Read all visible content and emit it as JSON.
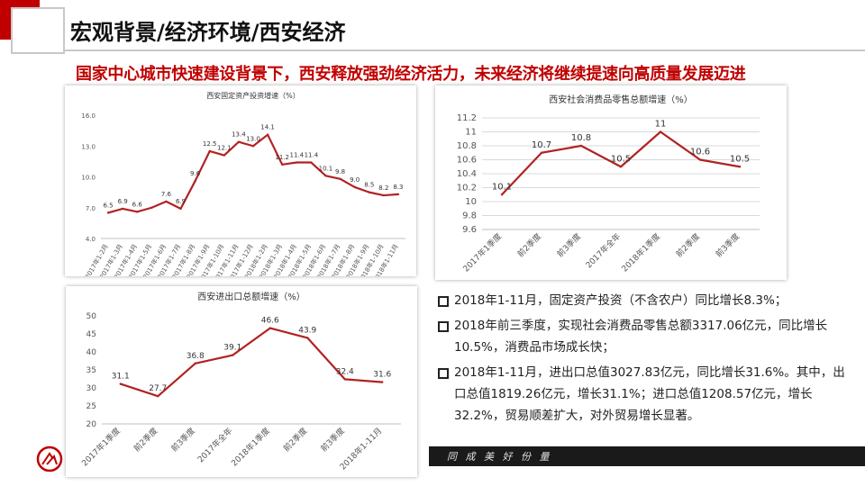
{
  "header": {
    "title": "宏观背景/经济环境/西安经济",
    "subtitle": "国家中心城市快速建设背景下，西安释放强劲经济活力，未来经济将继续提速向高质量发展迈进"
  },
  "colors": {
    "accent": "#c00000",
    "line": "#b22222",
    "grid": "#d9d9d9"
  },
  "chart_data": [
    {
      "type": "line",
      "title": "西安固定资产投资增速（%）",
      "categories": [
        "2017年1-2月",
        "2017年1-3月",
        "2017年1-4月",
        "2017年1-5月",
        "2017年1-6月",
        "2017年1-7月",
        "2017年1-8月",
        "2017年1-9月",
        "2017年1-10月",
        "2017年1-11月",
        "2017年1-12月",
        "2018年1-2月",
        "2018年1-3月",
        "2018年1-4月",
        "2018年1-5月",
        "2018年1-6月",
        "2018年1-7月",
        "2018年1-8月",
        "2018年1-9月",
        "2018年1-10月",
        "2018年1-11月"
      ],
      "values": [
        6.5,
        6.9,
        6.6,
        7.0,
        7.6,
        6.9,
        9.6,
        12.5,
        12.1,
        13.4,
        13.0,
        14.1,
        11.2,
        11.4,
        11.4,
        10.1,
        9.8,
        9.0,
        8.5,
        8.2,
        8.3
      ],
      "value_labels": [
        "6.5",
        "6.9",
        "6.6",
        "",
        "7.6",
        "6.9",
        "9.6",
        "12.5",
        "12.1",
        "13.4",
        "13.0",
        "14.1",
        "11.2",
        "11.4",
        "11.4",
        "10.1",
        "9.8",
        "9.0",
        "8.5",
        "8.2",
        "8.3"
      ],
      "yticks": [
        "4.0",
        "7.0",
        "10.0",
        "13.0",
        "16.0"
      ],
      "ylim": [
        4,
        16
      ]
    },
    {
      "type": "line",
      "title": "西安社会消费品零售总额增速（%）",
      "categories": [
        "2017年1季度",
        "前2季度",
        "前3季度",
        "2017年全年",
        "2018年1季度",
        "前2季度",
        "前3季度"
      ],
      "values": [
        10.1,
        10.7,
        10.8,
        10.5,
        11.0,
        10.6,
        10.5
      ],
      "value_labels": [
        "10.1",
        "10.7",
        "10.8",
        "10.5",
        "11",
        "10.6",
        "10.5"
      ],
      "yticks": [
        "9.6",
        "9.8",
        "10",
        "10.2",
        "10.4",
        "10.6",
        "10.8",
        "11",
        "11.2"
      ],
      "ylim": [
        9.6,
        11.2
      ]
    },
    {
      "type": "line",
      "title": "西安进出口总额增速（%）",
      "categories": [
        "2017年1季度",
        "前2季度",
        "前3季度",
        "2017年全年",
        "2018年1季度",
        "前2季度",
        "前3季度",
        "2018年1-11月"
      ],
      "values": [
        31.1,
        27.7,
        36.8,
        39.1,
        46.6,
        43.9,
        32.4,
        31.6
      ],
      "value_labels": [
        "31.1",
        "27.7",
        "36.8",
        "39.1",
        "46.6",
        "43.9",
        "32.4",
        "31.6"
      ],
      "yticks": [
        "20",
        "25",
        "30",
        "35",
        "40",
        "45",
        "50"
      ],
      "ylim": [
        20,
        50
      ]
    }
  ],
  "notes": [
    "2018年1-11月，固定资产投资（不含农户）同比增长8.3%；",
    "2018年前三季度，实现社会消费品零售总额3317.06亿元，同比增长10.5%，消费品市场成长快；",
    "2018年1-11月，进出口总值3027.83亿元，同比增长31.6%。其中，出口总值1819.26亿元，增长31.1%；进口总值1208.57亿元，增长32.2%，贸易顺差扩大，对外贸易增长显著。"
  ],
  "footer": {
    "text": "同 成 美 好 份 量"
  },
  "logo_icon": "company-logo-icon"
}
